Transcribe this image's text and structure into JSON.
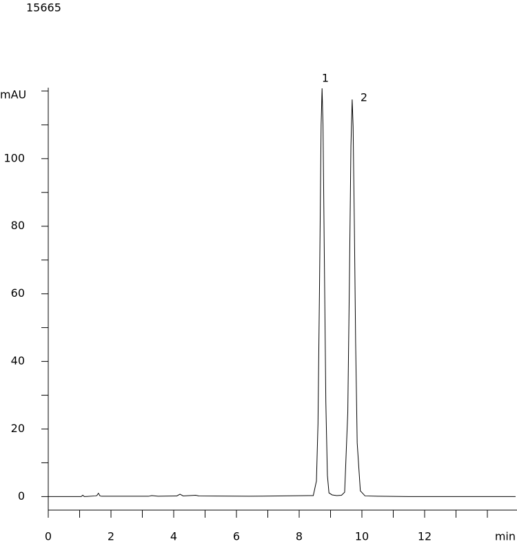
{
  "chart_data": {
    "type": "line",
    "title": "15665",
    "ylabel": "mAU",
    "xlabel": "min",
    "x": [
      0,
      1.05,
      1.1,
      1.15,
      1.5,
      1.55,
      1.6,
      1.65,
      1.7,
      2.2,
      3.2,
      3.3,
      3.5,
      4.1,
      4.2,
      4.3,
      4.7,
      4.8,
      6.4,
      8.3,
      8.45,
      8.55,
      8.6,
      8.65,
      8.7,
      8.73,
      8.76,
      8.8,
      8.85,
      8.9,
      8.95,
      9.05,
      9.2,
      9.35,
      9.45,
      9.55,
      9.6,
      9.65,
      9.69,
      9.72,
      9.76,
      9.8,
      9.85,
      9.95,
      10.1,
      10.5,
      11.5,
      14.9
    ],
    "series": [
      {
        "name": "signal",
        "color": "#000000",
        "values": [
          0,
          0,
          0.4,
          0,
          0.2,
          0.3,
          1.0,
          0.2,
          0.1,
          0.1,
          0.1,
          0.3,
          0.1,
          0.2,
          0.7,
          0.2,
          0.4,
          0.2,
          0.1,
          0.3,
          0.3,
          4.6,
          21.5,
          63.4,
          110,
          120.8,
          110,
          73,
          28,
          6.3,
          1.1,
          0.5,
          0.3,
          0.4,
          1.3,
          25,
          62.5,
          103.7,
          117.5,
          109.5,
          80,
          45.7,
          15.9,
          1.7,
          0.2,
          0.1,
          0,
          0
        ]
      }
    ],
    "peak_labels": [
      "1",
      "2"
    ],
    "xlim": [
      0,
      14.9
    ],
    "ylim": [
      -4,
      121
    ],
    "xticks": [
      0,
      2,
      4,
      6,
      8,
      10,
      12
    ],
    "minor_xticks": [
      1,
      3,
      5,
      7,
      9,
      11,
      13,
      14
    ],
    "yticks": [
      0,
      20,
      40,
      60,
      80,
      100
    ],
    "minor_yticks": [
      10,
      30,
      50,
      70,
      90,
      110,
      120
    ]
  }
}
